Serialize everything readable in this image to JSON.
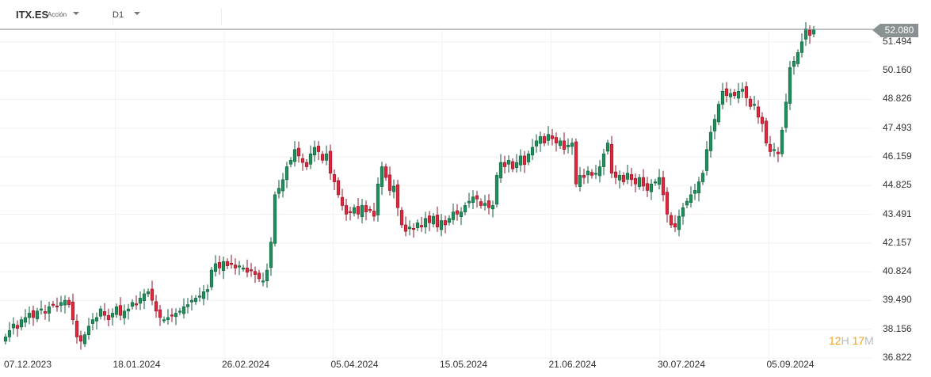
{
  "header": {
    "symbol": "ITX.ES",
    "instrument_type": "Acción",
    "timeframe": "D1"
  },
  "current_price": "52.080",
  "countdown": {
    "hours": "12",
    "hours_unit": "H",
    "minutes": "17",
    "minutes_unit": "M"
  },
  "colors": {
    "up": "#1f8f5c",
    "up_border": "#0f5e3b",
    "down": "#e2263d",
    "down_border": "#8e1424",
    "price_line": "#8a9192"
  },
  "chart_data": {
    "type": "candlestick",
    "symbol": "ITX.ES",
    "y_ticks": [
      "51.494",
      "50.160",
      "48.826",
      "47.493",
      "46.159",
      "44.825",
      "43.491",
      "42.157",
      "40.824",
      "39.490",
      "38.156",
      "36.822"
    ],
    "ylim": [
      36.822,
      52.5
    ],
    "x_ticks": [
      "07.12.2023",
      "18.01.2024",
      "26.02.2024",
      "05.04.2024",
      "15.05.2024",
      "21.06.2024",
      "30.07.2024",
      "05.09.2024"
    ],
    "closes": [
      37.8,
      38.1,
      38.4,
      38.2,
      38.6,
      38.7,
      38.9,
      38.7,
      39.0,
      39.1,
      38.9,
      39.2,
      39.3,
      39.2,
      39.4,
      39.5,
      39.3,
      38.6,
      37.8,
      37.6,
      37.9,
      38.3,
      38.6,
      38.7,
      39.1,
      38.8,
      38.6,
      38.9,
      39.2,
      38.8,
      39.0,
      39.1,
      39.4,
      39.3,
      39.6,
      39.8,
      39.9,
      39.5,
      39.0,
      38.7,
      38.6,
      38.7,
      38.8,
      38.9,
      39.0,
      39.2,
      39.3,
      39.5,
      39.6,
      39.7,
      39.9,
      40.0,
      40.9,
      41.2,
      41.0,
      41.3,
      41.1,
      41.2,
      41.0,
      41.1,
      41.0,
      40.8,
      40.9,
      40.7,
      40.5,
      40.4,
      40.9,
      42.2,
      44.4,
      44.7,
      45.1,
      45.7,
      46.0,
      46.5,
      46.2,
      45.9,
      45.7,
      46.3,
      46.6,
      46.4,
      46.0,
      46.3,
      45.4,
      45.0,
      44.4,
      43.9,
      43.5,
      43.6,
      43.8,
      43.5,
      43.9,
      43.6,
      43.7,
      43.4,
      44.9,
      45.7,
      45.2,
      44.6,
      44.8,
      43.8,
      43.0,
      42.7,
      42.9,
      42.8,
      43.1,
      42.9,
      43.3,
      43.1,
      43.4,
      42.9,
      43.2,
      43.0,
      43.3,
      43.6,
      43.5,
      43.6,
      43.9,
      44.1,
      44.3,
      44.2,
      43.9,
      44.0,
      43.8,
      43.9,
      45.3,
      45.9,
      45.7,
      46.0,
      45.6,
      45.9,
      46.2,
      45.8,
      46.3,
      46.6,
      46.9,
      47.1,
      46.8,
      47.2,
      47.0,
      46.8,
      46.9,
      46.5,
      46.7,
      46.8,
      44.9,
      45.3,
      45.2,
      45.5,
      45.3,
      45.4,
      45.7,
      46.3,
      46.8,
      45.4,
      45.2,
      45.3,
      45.0,
      45.4,
      45.1,
      44.9,
      45.2,
      44.8,
      44.6,
      44.9,
      45.0,
      45.2,
      44.4,
      43.5,
      43.0,
      42.9,
      43.4,
      43.8,
      44.1,
      44.4,
      44.6,
      45.0,
      45.4,
      46.5,
      47.3,
      47.9,
      48.6,
      49.2,
      49.0,
      49.1,
      49.0,
      49.2,
      49.3,
      48.9,
      48.5,
      48.6,
      48.0,
      47.7,
      46.8,
      46.4,
      46.5,
      46.3,
      47.4,
      48.7,
      50.3,
      50.6,
      51.0,
      51.5,
      52.1,
      51.8,
      52.08
    ]
  }
}
